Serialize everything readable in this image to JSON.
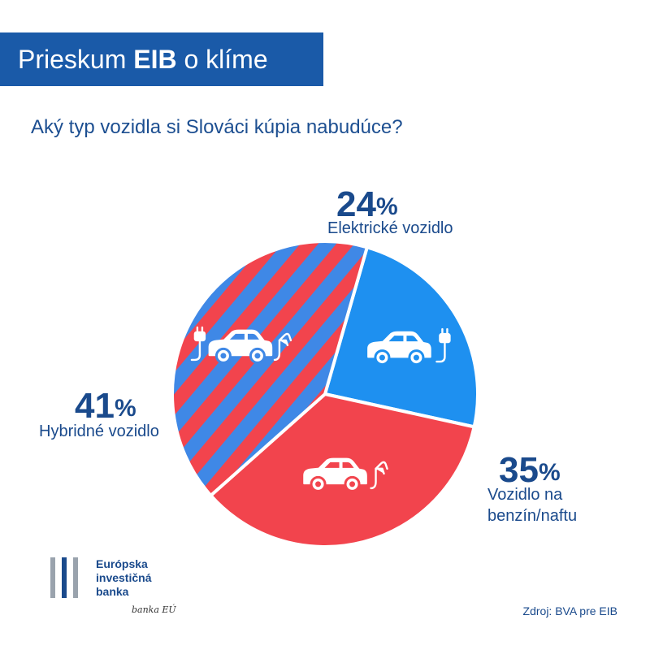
{
  "header": {
    "title_pre": "Prieskum ",
    "title_bold": "EIB",
    "title_post": " o klíme"
  },
  "question": "Aký typ vozidla si Slováci kúpia nabudúce?",
  "chart_data": {
    "type": "pie",
    "title": "Aký typ vozidla si Slováci kúpia nabudúce?",
    "unit": "%",
    "slices": [
      {
        "name": "Elektrické vozidlo",
        "value": 24,
        "label": "24",
        "pattern": "solid",
        "color": "#1e90f0",
        "icon": "electric-car-icon"
      },
      {
        "name": "Vozidlo na benzín/naftu",
        "value": 35,
        "label": "35",
        "pattern": "solid",
        "color": "#f2444d",
        "icon": "petrol-car-icon"
      },
      {
        "name": "Hybridné vozidlo",
        "value": 41,
        "label": "41",
        "pattern": "striped",
        "color": "#f2444d",
        "color2": "#3f88e6",
        "icon": "hybrid-car-icon"
      }
    ],
    "label_lines": {
      "electric": [
        "Elektrické vozidlo"
      ],
      "petrol": [
        "Vozidlo na",
        "benzín/naftu"
      ],
      "hybrid": [
        "Hybridné vozidlo"
      ]
    },
    "start_angle_deg": 16
  },
  "percent_sign": "%",
  "logo": {
    "line1": "Európska",
    "line2": "investičná",
    "line3": "banka",
    "tagline": "banka EÚ",
    "bar_colors": [
      "#9aa3ad",
      "#1a4a8c",
      "#9aa3ad"
    ]
  },
  "source": "Zdroj: BVA pre EIB"
}
